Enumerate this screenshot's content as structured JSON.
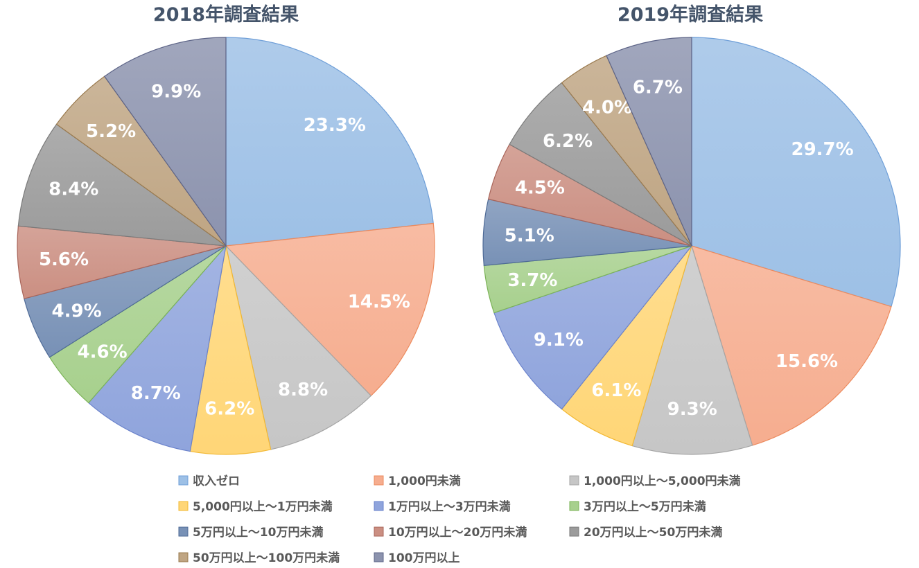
{
  "chart_data": [
    {
      "type": "pie",
      "title": "2018年調査結果",
      "categories": [
        "収入ゼロ",
        "1,000円未満",
        "1,000円以上～5,000円未満",
        "5,000円以上～1万円未満",
        "1万円以上～3万円未満",
        "3万円以上～5万円未満",
        "5万円以上～10万円未満",
        "10万円以上～20万円未満",
        "20万円以上～50万円未満",
        "50万円以上～100万円未満",
        "100万円以上"
      ],
      "values": [
        23.3,
        14.5,
        8.8,
        6.2,
        8.7,
        4.6,
        4.9,
        5.6,
        8.4,
        5.2,
        9.9
      ],
      "labels": [
        "23.3%",
        "14.5%",
        "8.8%",
        "6.2%",
        "8.7%",
        "4.6%",
        "4.9%",
        "5.6%",
        "8.4%",
        "5.2%",
        "9.9%"
      ]
    },
    {
      "type": "pie",
      "title": "2019年調査結果",
      "categories": [
        "収入ゼロ",
        "1,000円未満",
        "1,000円以上～5,000円未満",
        "5,000円以上～1万円未満",
        "1万円以上～3万円未満",
        "3万円以上～5万円未満",
        "5万円以上～10万円未満",
        "10万円以上～20万円未満",
        "20万円以上～50万円未満",
        "50万円以上～100万円未満",
        "100万円以上"
      ],
      "values": [
        29.7,
        15.6,
        9.3,
        6.1,
        9.1,
        3.7,
        5.1,
        4.5,
        6.2,
        4.0,
        6.7
      ],
      "labels": [
        "29.7%",
        "15.6%",
        "9.3%",
        "6.1%",
        "9.1%",
        "3.7%",
        "5.1%",
        "4.5%",
        "6.2%",
        "4.0%",
        "6.7%"
      ]
    }
  ],
  "legend": {
    "placement": "bottom",
    "items": [
      "収入ゼロ",
      "1,000円未満",
      "1,000円以上～5,000円未満",
      "5,000円以上～1万円未満",
      "1万円以上～3万円未満",
      "3万円以上～5万円未満",
      "5万円以上～10万円未満",
      "10万円以上～20万円未満",
      "20万円以上～50万円未満",
      "50万円以上～100万円未満",
      "100万円以上"
    ]
  },
  "colors": {
    "fills": [
      "#9dc0e6",
      "#f6ad8f",
      "#c6c6c6",
      "#ffd677",
      "#8fa4dc",
      "#a7d08d",
      "#7891b6",
      "#cb8f82",
      "#9b9b9b",
      "#bfa583",
      "#8c93ae"
    ],
    "strokes": [
      "#6f9fd8",
      "#ec8a5d",
      "#a5a5a5",
      "#f2b833",
      "#6a82cb",
      "#7bb357",
      "#4e6a96",
      "#a9655a",
      "#7a7a7a",
      "#9a7a4e",
      "#5d6487"
    ],
    "title": "#44546a",
    "label": "#ffffff",
    "legend_text": "#595959"
  }
}
